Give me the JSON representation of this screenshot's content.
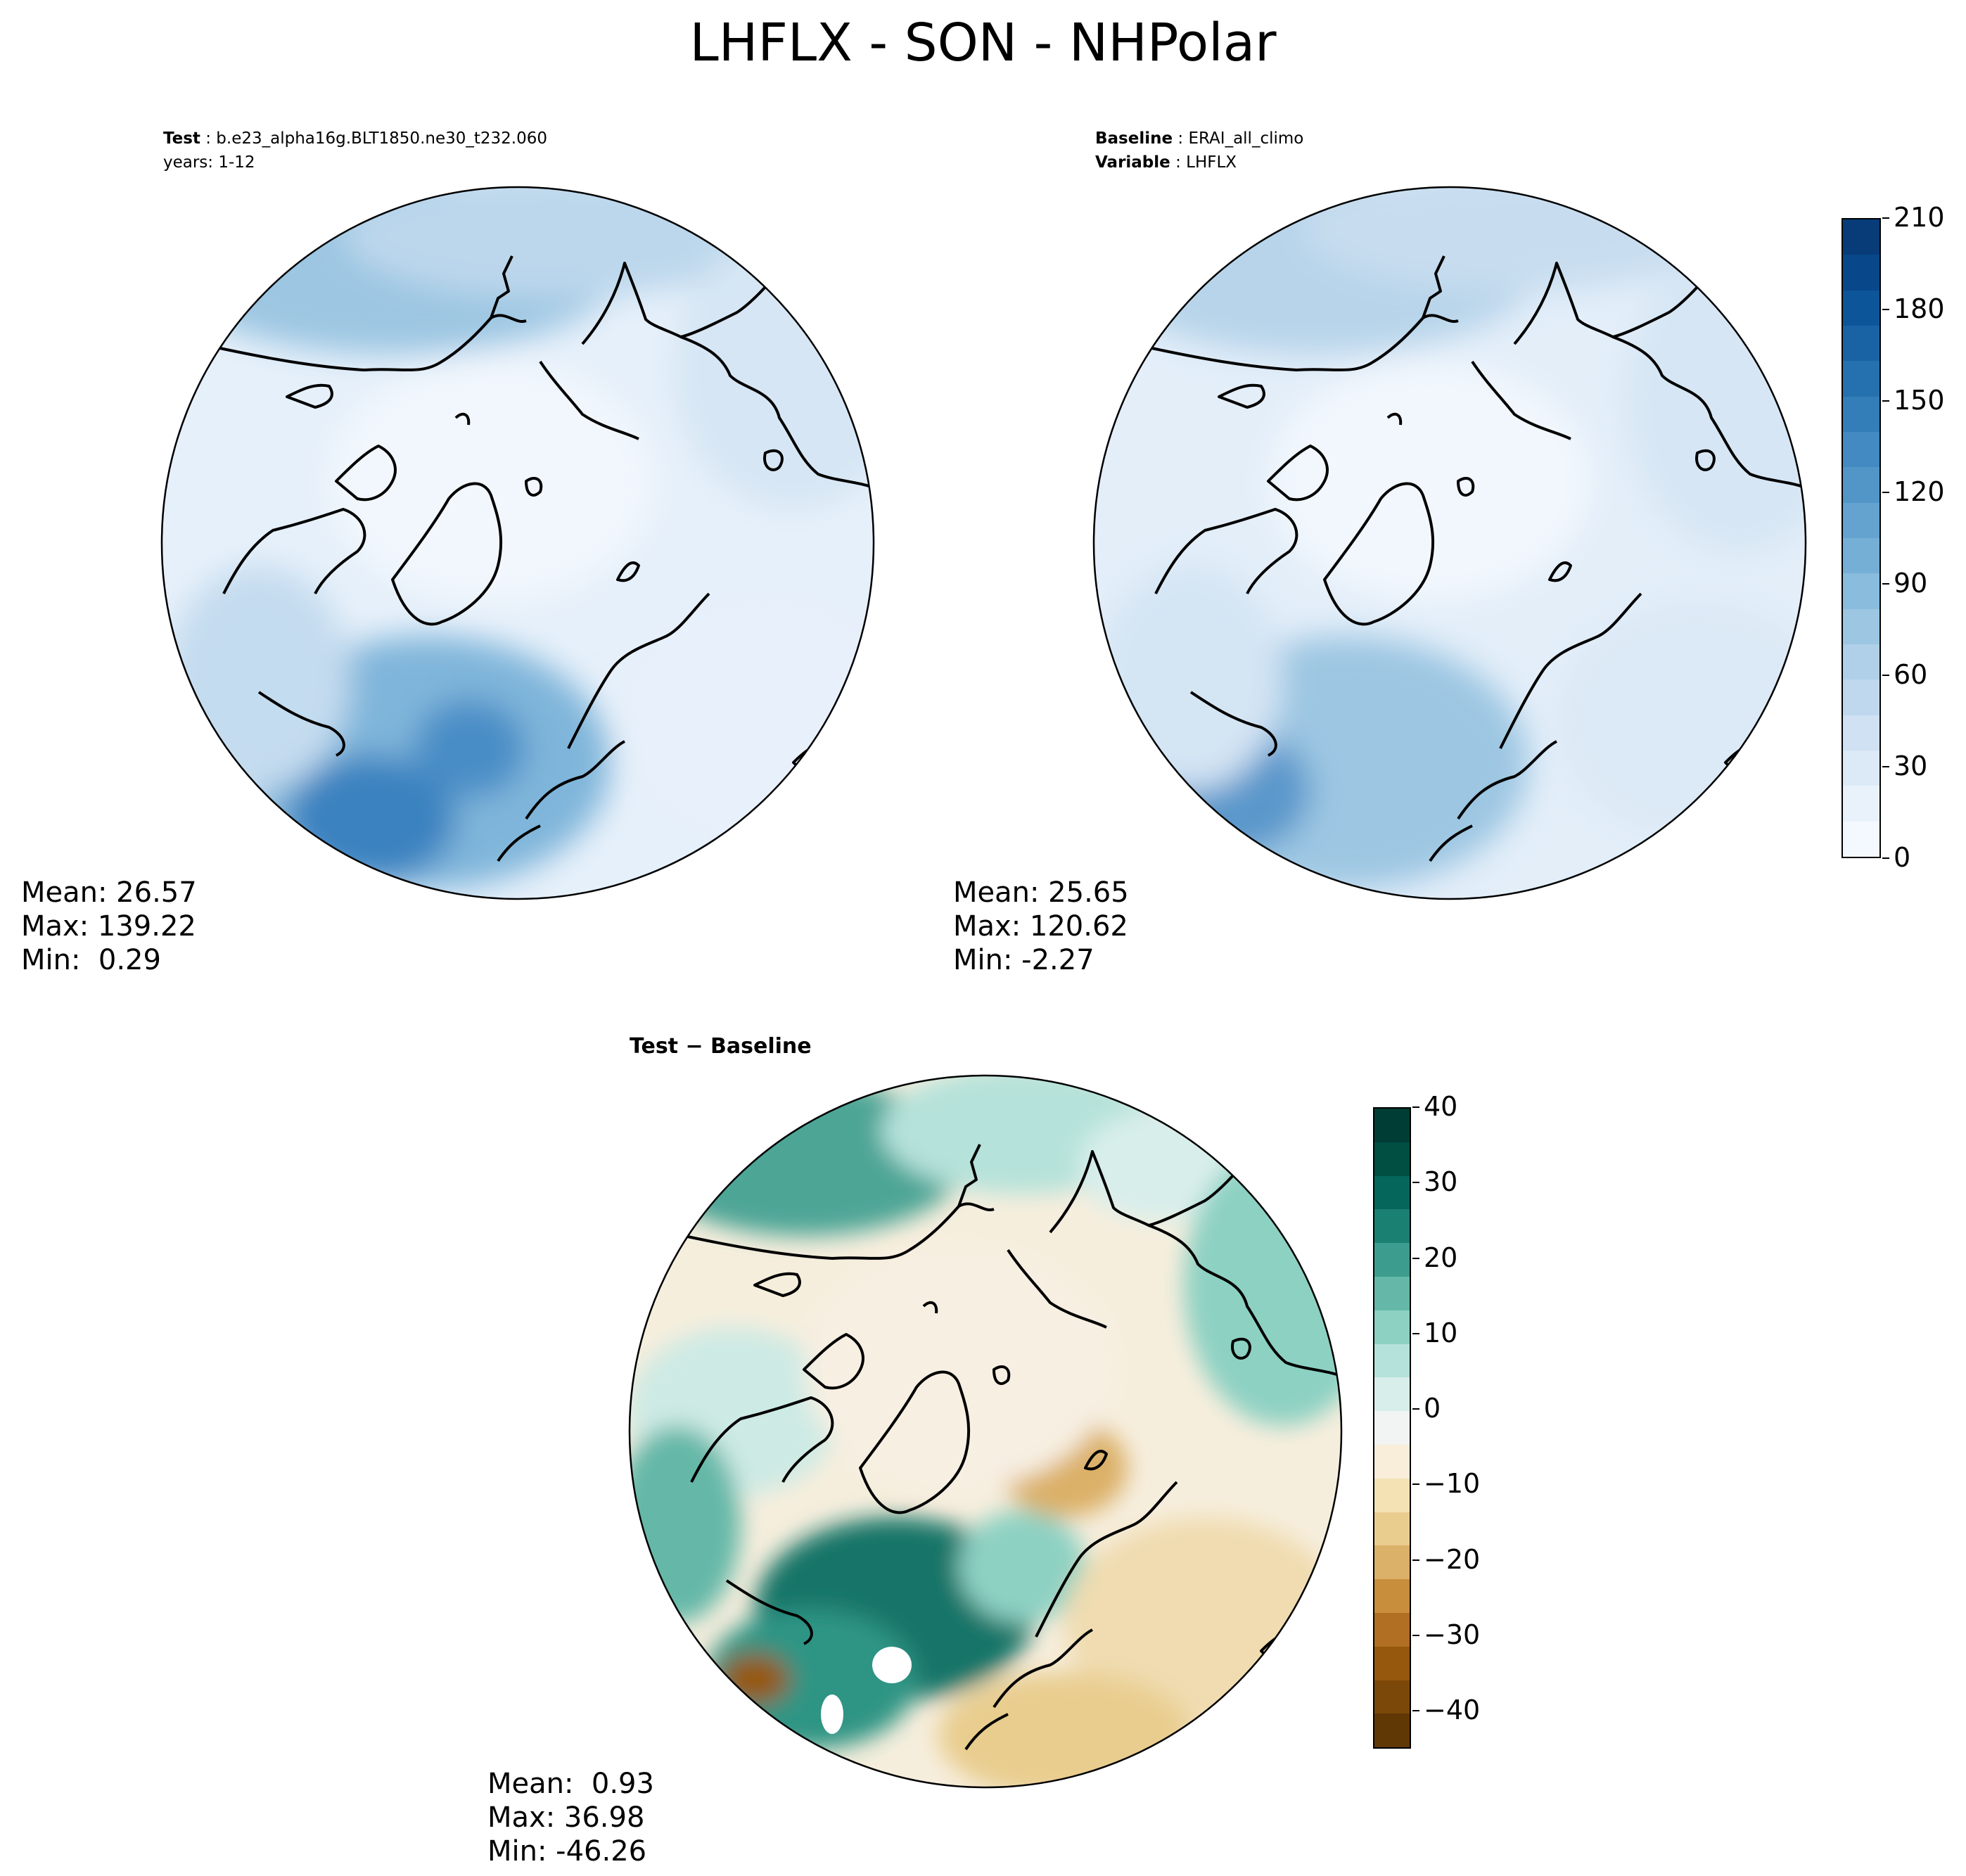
{
  "suptitle": "LHFLX - SON - NHPolar",
  "panels": {
    "test": {
      "label_key": "Test",
      "label_val": "b.e23_alpha16g.BLT1850.ne30_t232.060",
      "years": "years: 1-12",
      "mean": "Mean: 26.57",
      "max": "Max: 139.22",
      "min": "Min:  0.29"
    },
    "baseline": {
      "label_key": "Baseline",
      "label_val": "ERAI_all_climo",
      "var_key": "Variable",
      "var_val": "LHFLX",
      "mean": "Mean: 25.65",
      "max": "Max: 120.62",
      "min": "Min: -2.27"
    },
    "diff": {
      "title": "Test − Baseline",
      "mean": "Mean:  0.93",
      "max": "Max: 36.98",
      "min": "Min: -46.26"
    }
  },
  "colorbars": {
    "main": {
      "ticks": [
        "0",
        "30",
        "60",
        "90",
        "120",
        "150",
        "180",
        "210"
      ],
      "colors": [
        "#f4f9ff",
        "#e9f2fb",
        "#dce9f6",
        "#cfe1f2",
        "#bfd8ed",
        "#afd0e8",
        "#9cc6e2",
        "#89bcdd",
        "#76afd6",
        "#64a3cf",
        "#5296c8",
        "#428ac1",
        "#337db8",
        "#2570ae",
        "#1963a5",
        "#0d5599",
        "#08488a",
        "#083c78"
      ]
    },
    "diff": {
      "ticks": [
        "40",
        "30",
        "20",
        "10",
        "0",
        "−10",
        "−20",
        "−30",
        "−40"
      ],
      "colors": [
        "#603806",
        "#7b4809",
        "#95580d",
        "#b06f22",
        "#c88e3c",
        "#dbb068",
        "#e9cd8f",
        "#f4e2b5",
        "#f8eeda",
        "#f1f4f2",
        "#d8eeeb",
        "#b5e2da",
        "#8dd1c3",
        "#65b8a8",
        "#3c9d8e",
        "#1a8072",
        "#05665b",
        "#014e43",
        "#003d34"
      ]
    }
  }
}
